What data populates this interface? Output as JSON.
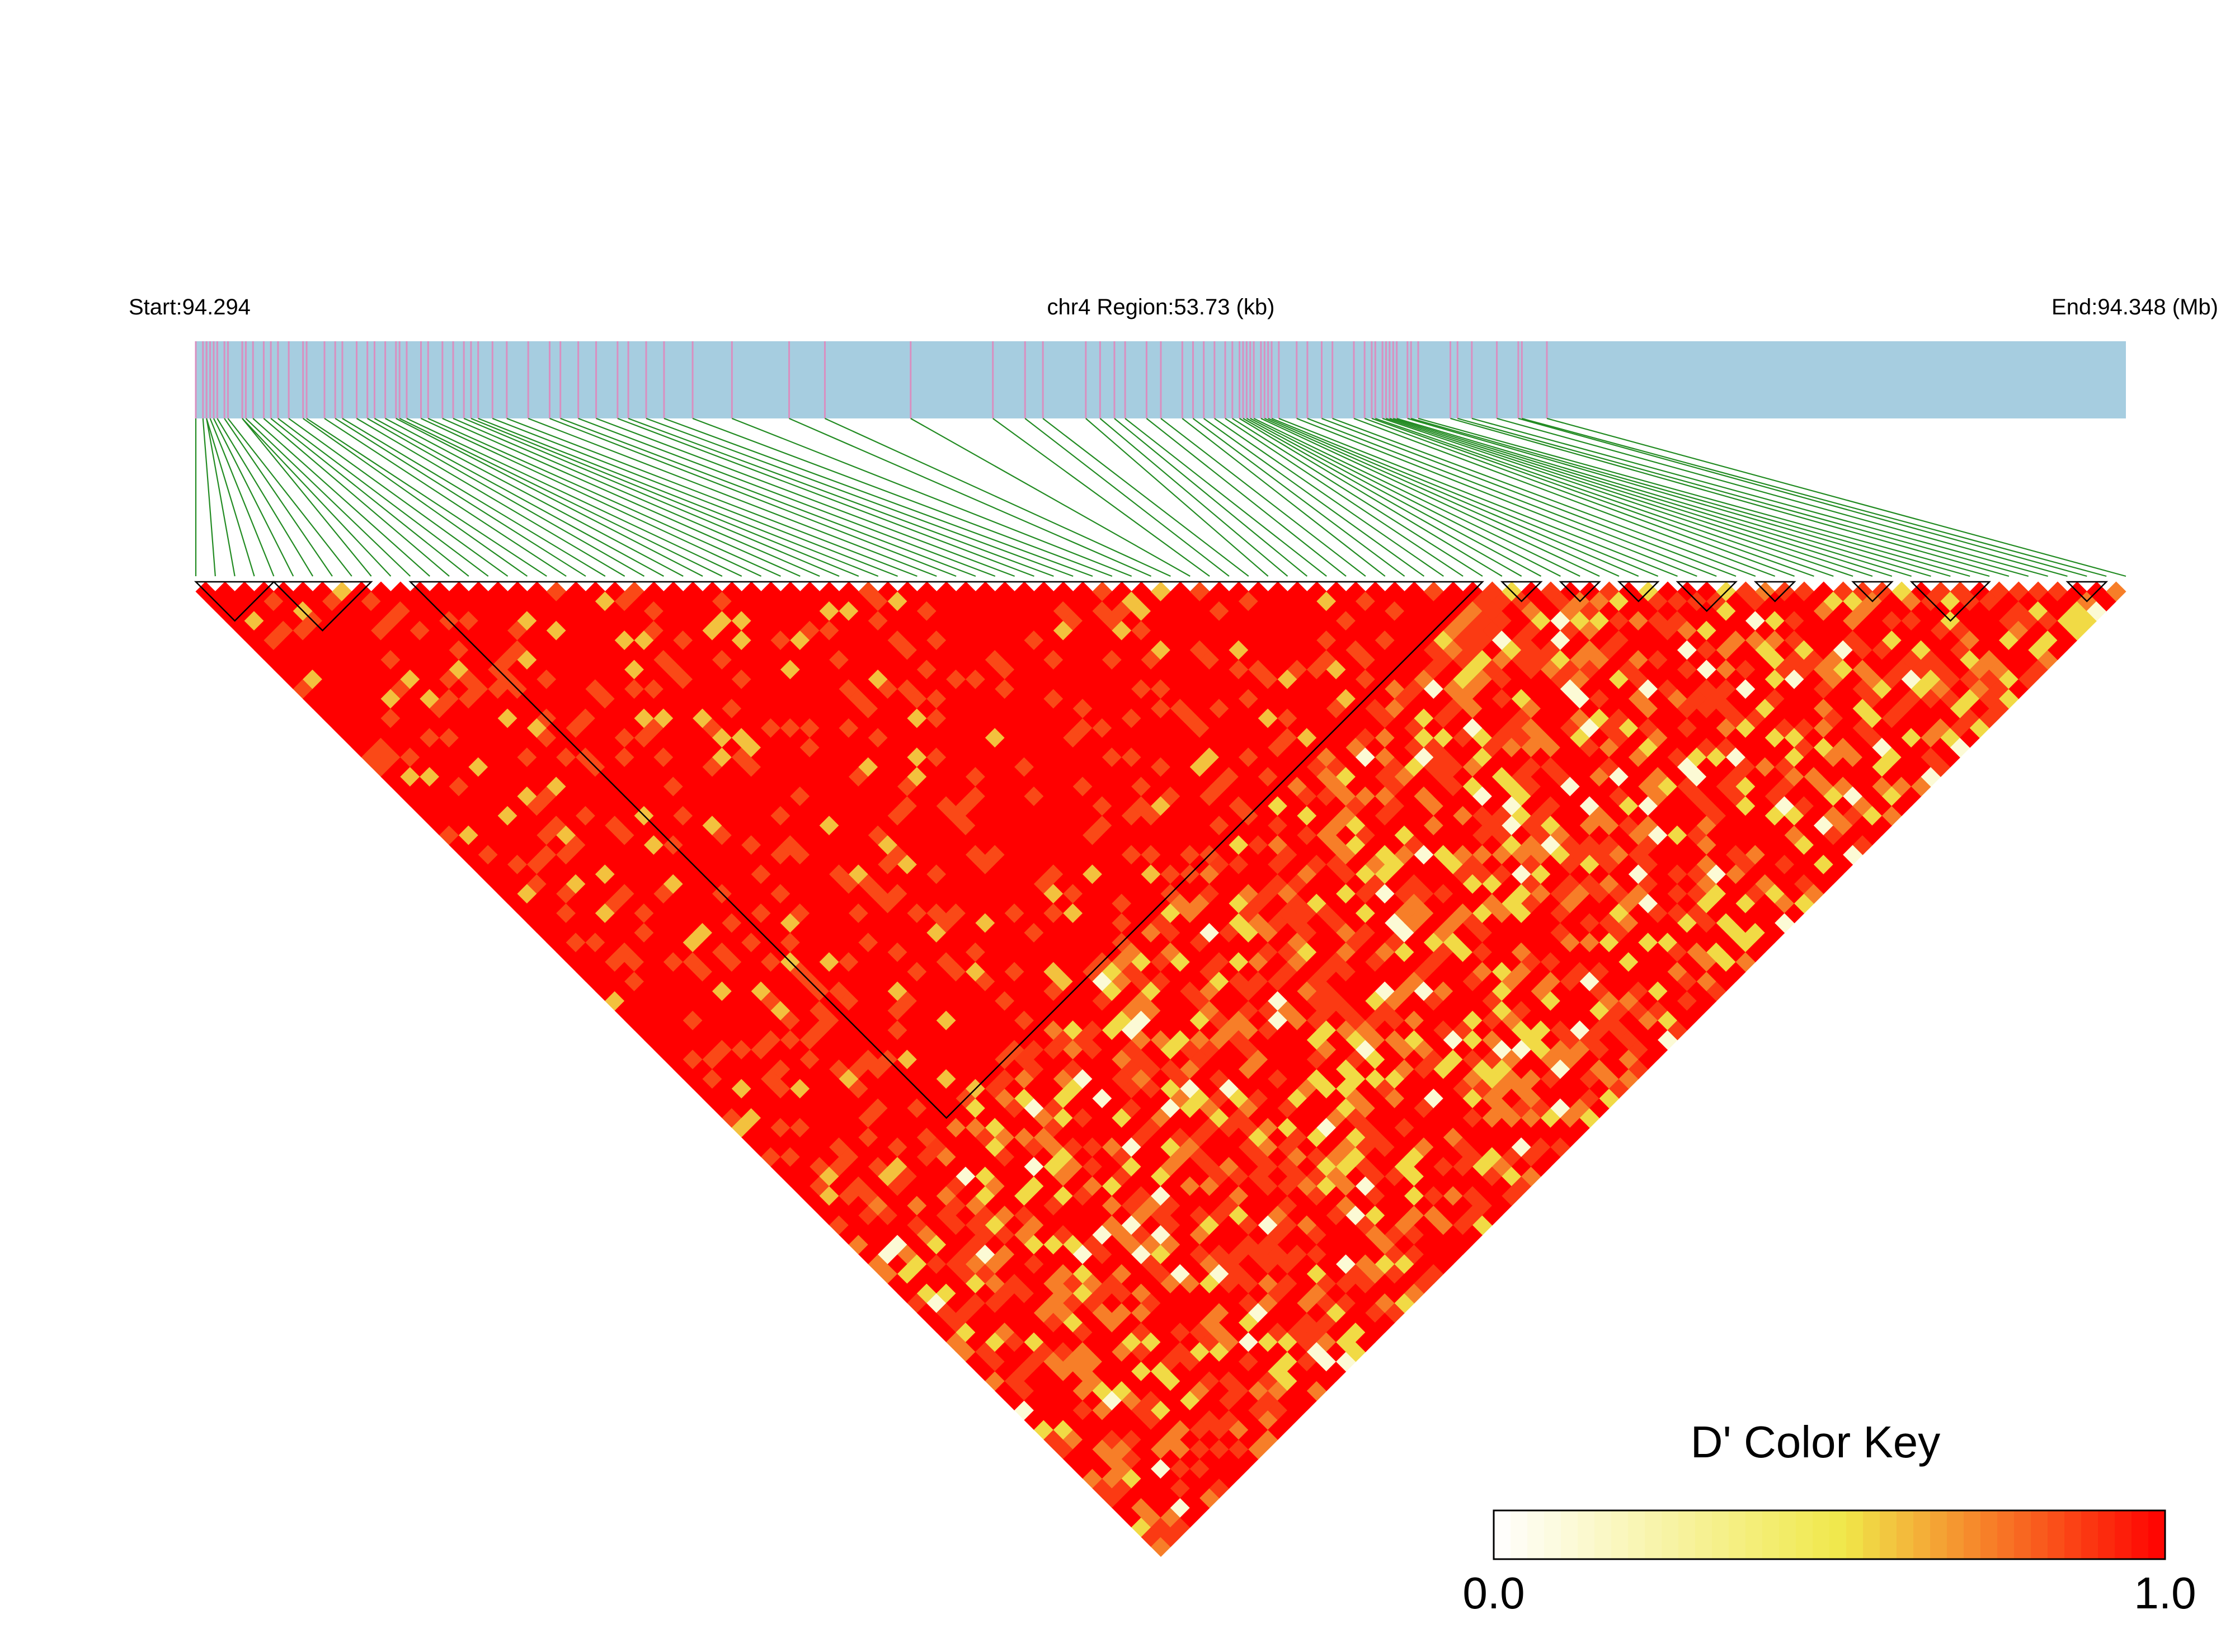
{
  "header": {
    "start_label": "Start:94.294",
    "region_label": "chr4 Region:53.73 (kb)",
    "end_label": "End:94.348 (Mb)"
  },
  "colors": {
    "track_background": "#a6cde0",
    "snp_tick": "#d98fc0",
    "connector_line": "#228b22",
    "block_outline": "#000000",
    "scale": [
      "#ffffff",
      "#f0e84a",
      "#ff0000"
    ]
  },
  "chart_data": {
    "type": "heatmap",
    "title": "D' Color Key",
    "chromosome": "chr4",
    "start_mb": 94.294,
    "end_mb": 94.348,
    "region_kb": 53.73,
    "n_snps": 100,
    "snp_positions_mb": [
      94.294,
      94.2942,
      94.2943,
      94.2943,
      94.2944,
      94.2945,
      94.2946,
      94.2948,
      94.2949,
      94.2953,
      94.2953,
      94.2954,
      94.2956,
      94.2959,
      94.2961,
      94.2963,
      94.2966,
      94.297,
      94.2971,
      94.2976,
      94.2979,
      94.2981,
      94.2985,
      94.2988,
      94.299,
      94.2993,
      94.2996,
      94.2997,
      94.2999,
      94.3003,
      94.3005,
      94.3009,
      94.3012,
      94.3015,
      94.3017,
      94.3019,
      94.3023,
      94.3027,
      94.3033,
      94.3039,
      94.3042,
      94.3047,
      94.3052,
      94.3058,
      94.3061,
      94.3066,
      94.3071,
      94.3079,
      94.309,
      94.3106,
      94.3116,
      94.314,
      94.3163,
      94.3172,
      94.3177,
      94.3189,
      94.3193,
      94.3197,
      94.32,
      94.3206,
      94.321,
      94.3216,
      94.3219,
      94.3222,
      94.3225,
      94.3228,
      94.323,
      94.3232,
      94.3233,
      94.3234,
      94.3235,
      94.3236,
      94.3238,
      94.3239,
      94.324,
      94.3241,
      94.3243,
      94.3248,
      94.3251,
      94.3255,
      94.3258,
      94.3264,
      94.3267,
      94.3269,
      94.327,
      94.3272,
      94.3273,
      94.3274,
      94.3275,
      94.3276,
      94.3279,
      94.328,
      94.3282,
      94.3291,
      94.3293,
      94.3297,
      94.3304,
      94.331,
      94.3311,
      94.3318
    ],
    "blocks": [
      {
        "from_snp": 1,
        "to_snp": 5
      },
      {
        "from_snp": 5,
        "to_snp": 10
      },
      {
        "from_snp": 12,
        "to_snp": 67
      },
      {
        "from_snp": 68,
        "to_snp": 70
      },
      {
        "from_snp": 71,
        "to_snp": 73
      },
      {
        "from_snp": 74,
        "to_snp": 76
      },
      {
        "from_snp": 77,
        "to_snp": 80
      },
      {
        "from_snp": 81,
        "to_snp": 83
      },
      {
        "from_snp": 86,
        "to_snp": 88
      },
      {
        "from_snp": 89,
        "to_snp": 93
      },
      {
        "from_snp": 97,
        "to_snp": 99
      }
    ],
    "color_key": {
      "label": "D' Color Key",
      "min_label": "0.0",
      "max_label": "1.0",
      "range": [
        0.0,
        1.0
      ]
    }
  }
}
